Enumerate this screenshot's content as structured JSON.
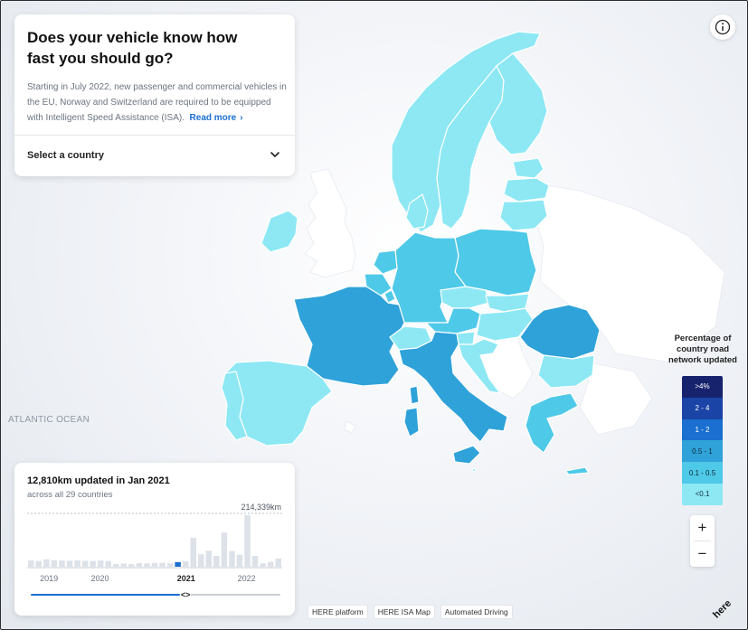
{
  "intro": {
    "title": "Does your vehicle know how fast you should go?",
    "description": "Starting in July 2022, new passenger and commercial vehicles in the EU, Norway and Switzerland are required to be equipped with Intelligent Speed Assistance (ISA).",
    "read_more": "Read more"
  },
  "country_select": {
    "placeholder": "Select a country"
  },
  "map": {
    "ocean_label": "ATLANTIC OCEAN",
    "colors": {
      "lt_0_1": "#8de8f4",
      "r_0_1_0_5": "#4fc9e8",
      "r_0_5_1": "#2fa2d9",
      "r_1_2": "#1a6fd0",
      "r_2_4": "#1a44a6",
      "gt_4": "#17236d",
      "non_member": "#ffffff"
    }
  },
  "legend": {
    "title": "Percentage of country road network updated",
    "items": [
      {
        "label": ">4%",
        "color": "#17236d",
        "text": "#ffffff"
      },
      {
        "label": "2 - 4",
        "color": "#1a44a6",
        "text": "#ffffff"
      },
      {
        "label": "1 - 2",
        "color": "#1a6fd0",
        "text": "#ffffff"
      },
      {
        "label": "0.5 - 1",
        "color": "#2fa2d9",
        "text": "#0d2a3a"
      },
      {
        "label": "0.1 - 0.5",
        "color": "#4fc9e8",
        "text": "#0d2a3a"
      },
      {
        "label": "<0.1",
        "color": "#8de8f4",
        "text": "#0d2a3a"
      }
    ]
  },
  "zoom": {
    "in": "+",
    "out": "−"
  },
  "stats": {
    "headline": "12,810km updated in Jan 2021",
    "subline": "across all 29 countries",
    "max_label": "214,339km",
    "max_value": 214339,
    "selected_index": 19,
    "bars_km": [
      26000,
      24000,
      31000,
      27000,
      26000,
      25000,
      26000,
      25000,
      24000,
      26000,
      24000,
      9000,
      13000,
      11000,
      15000,
      14000,
      16000,
      16000,
      14000,
      19000,
      22000,
      120000,
      52000,
      67000,
      45000,
      142000,
      65000,
      50000,
      214339,
      45000,
      14000,
      20000,
      34000
    ],
    "years": [
      "2019",
      "2020",
      "2021",
      "2022"
    ],
    "active_year": "2021",
    "slider_value": 0.62,
    "handle_glyph": "<>"
  },
  "footer_links": [
    "HERE platform",
    "HERE ISA Map",
    "Automated Driving"
  ],
  "brand": "here",
  "info_icon": "info-icon"
}
